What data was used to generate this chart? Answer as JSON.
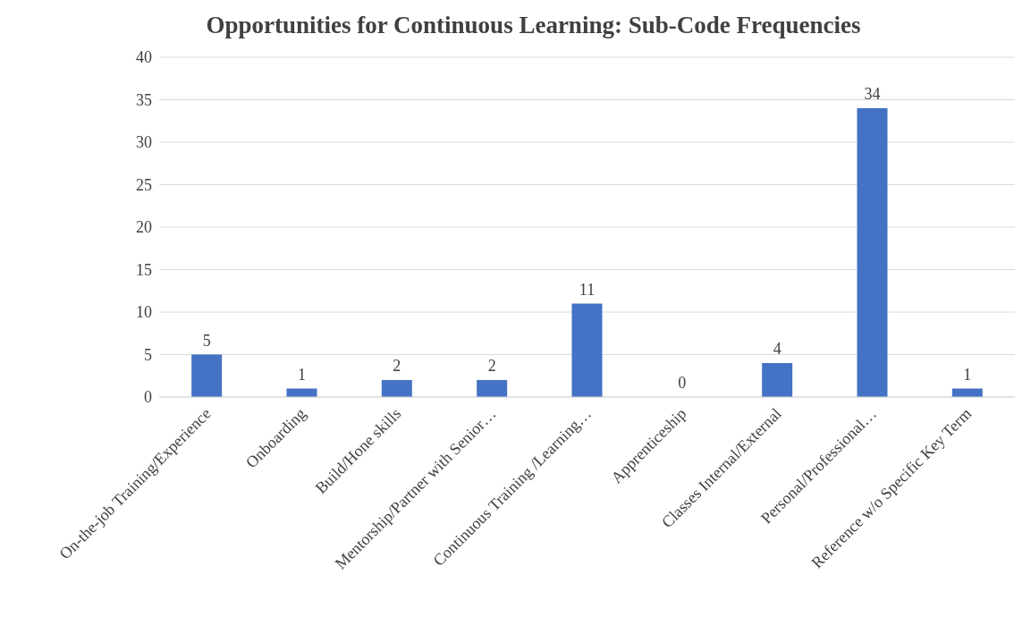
{
  "chart_data": {
    "type": "bar",
    "title": "Opportunities for Continuous Learning: Sub-Code Frequencies",
    "categories": [
      "On-the-job Training/Experience",
      "Onboarding",
      "Build/Hone skills",
      "Mentorship/Partner with Senior…",
      "Continuous Training /Learning…",
      "Apprenticeship",
      "Classes Internal/External",
      "Personal/Professional…",
      "Reference w/o Specific Key Term"
    ],
    "values": [
      5,
      1,
      2,
      2,
      11,
      0,
      4,
      34,
      1
    ],
    "color": "#4472c4",
    "ylim": [
      0,
      40
    ],
    "yticks": [
      0,
      5,
      10,
      15,
      20,
      25,
      30,
      35,
      40
    ],
    "grid": "y",
    "data_labels": true
  }
}
